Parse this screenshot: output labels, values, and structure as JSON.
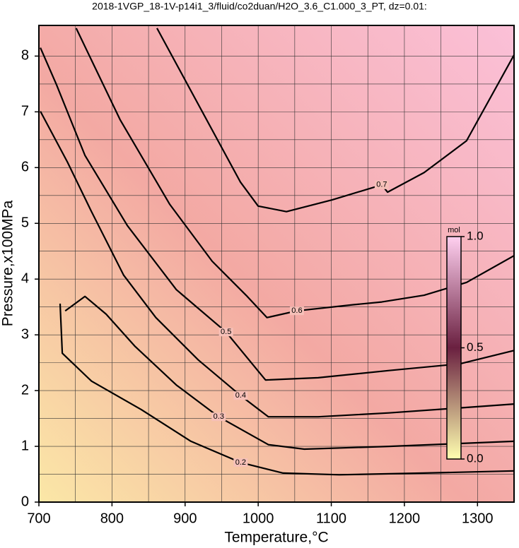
{
  "chart_data": {
    "type": "contour",
    "title": "2018-1VGP_18-1V-p14i1_3/fluid/co2duan/H2O_3.6_C1.000_3_PT, dz=0.01:",
    "x_label": "Temperature,°C",
    "y_label": "Pressure,x100MPa",
    "xlim": [
      700,
      1350
    ],
    "ylim": [
      0,
      8.55
    ],
    "xticks": [
      700,
      800,
      900,
      1000,
      1100,
      1200,
      1300
    ],
    "yticks": [
      0,
      1,
      2,
      3,
      4,
      5,
      6,
      7,
      8
    ],
    "xgrid": [
      750,
      800,
      850,
      900,
      950,
      1000,
      1050,
      1100,
      1150,
      1200,
      1250,
      1300
    ],
    "ygrid": [
      0.5,
      1,
      1.5,
      2,
      2.5,
      3,
      3.5,
      4,
      4.5,
      5,
      5.5,
      6,
      6.5,
      7,
      7.5,
      8
    ],
    "line_color": "#000000",
    "series": [
      {
        "name": "0.2",
        "x": [
          729,
          732,
          772,
          840,
          908,
          976,
          1034,
          1111,
          1227,
          1350
        ],
        "values": [
          3.56,
          2.67,
          2.17,
          1.66,
          1.09,
          0.71,
          0.52,
          0.49,
          0.52,
          0.56
        ]
      },
      {
        "name": "0.3",
        "x": [
          736,
          763,
          792,
          831,
          888,
          946,
          1014,
          1063,
          1179,
          1350
        ],
        "values": [
          3.43,
          3.69,
          3.37,
          2.8,
          2.1,
          1.53,
          1.03,
          0.95,
          1.0,
          1.09
        ]
      },
      {
        "name": "0.4",
        "x": [
          702,
          739,
          772,
          816,
          860,
          918,
          976,
          1014,
          1082,
          1179,
          1276,
          1350
        ],
        "values": [
          7.01,
          6.1,
          5.21,
          4.07,
          3.31,
          2.55,
          1.91,
          1.53,
          1.53,
          1.6,
          1.69,
          1.76
        ]
      },
      {
        "name": "0.5",
        "x": [
          702,
          724,
          763,
          821,
          888,
          956,
          1010,
          1082,
          1179,
          1276,
          1350
        ],
        "values": [
          8.15,
          7.49,
          6.22,
          4.96,
          3.81,
          3.05,
          2.19,
          2.23,
          2.36,
          2.48,
          2.72
        ]
      },
      {
        "name": "0.6",
        "x": [
          751,
          811,
          879,
          937,
          985,
          1012,
          1053,
          1130,
          1169,
          1227,
          1285,
          1350
        ],
        "values": [
          8.5,
          6.86,
          5.34,
          4.32,
          3.69,
          3.31,
          3.43,
          3.54,
          3.59,
          3.71,
          3.94,
          4.42
        ]
      },
      {
        "name": "0.7",
        "x": [
          861.5,
          975.7,
          999.9,
          1038.6,
          1101,
          1169,
          1177,
          1227,
          1285,
          1350
        ],
        "values": [
          8.5,
          5.74,
          5.31,
          5.21,
          5.42,
          5.69,
          5.56,
          5.91,
          6.48,
          8.02
        ]
      }
    ],
    "colorbar": {
      "label": "mol",
      "lim": [
        0,
        1
      ],
      "ticks": [
        {
          "value": 0,
          "label": "0.0"
        },
        {
          "value": 0.5,
          "label": "0.5"
        },
        {
          "value": 1,
          "label": "1.0"
        }
      ],
      "colors": [
        "#ffffb0",
        "#6a2040",
        "#ffd0f0"
      ]
    }
  }
}
